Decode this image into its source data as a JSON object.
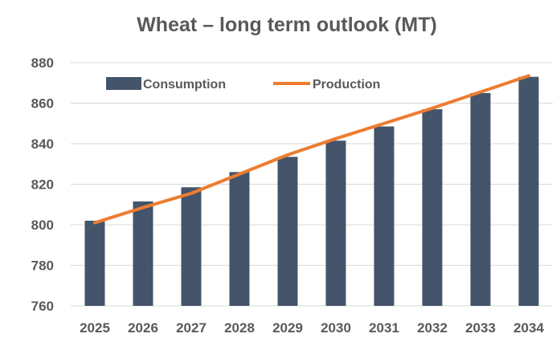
{
  "chart_data": {
    "type": "bar",
    "title": "Wheat – long term outlook (MT)",
    "xlabel": "",
    "ylabel": "",
    "categories": [
      "2025",
      "2026",
      "2027",
      "2028",
      "2029",
      "2030",
      "2031",
      "2032",
      "2033",
      "2034"
    ],
    "ylim": [
      760,
      880
    ],
    "yticks": [
      760,
      780,
      800,
      820,
      840,
      860,
      880
    ],
    "grid": true,
    "legend_position": "top-left",
    "series": [
      {
        "name": "Consumption",
        "type": "bar",
        "color": "#44546a",
        "values": [
          802,
          811.5,
          818.5,
          826,
          833.5,
          841.5,
          848.5,
          857,
          865,
          873
        ]
      },
      {
        "name": "Production",
        "type": "line",
        "color": "#ed7d31",
        "values": [
          801,
          808.5,
          815.5,
          825,
          834.5,
          842.5,
          850,
          857.5,
          865.5,
          873.5
        ]
      }
    ]
  }
}
